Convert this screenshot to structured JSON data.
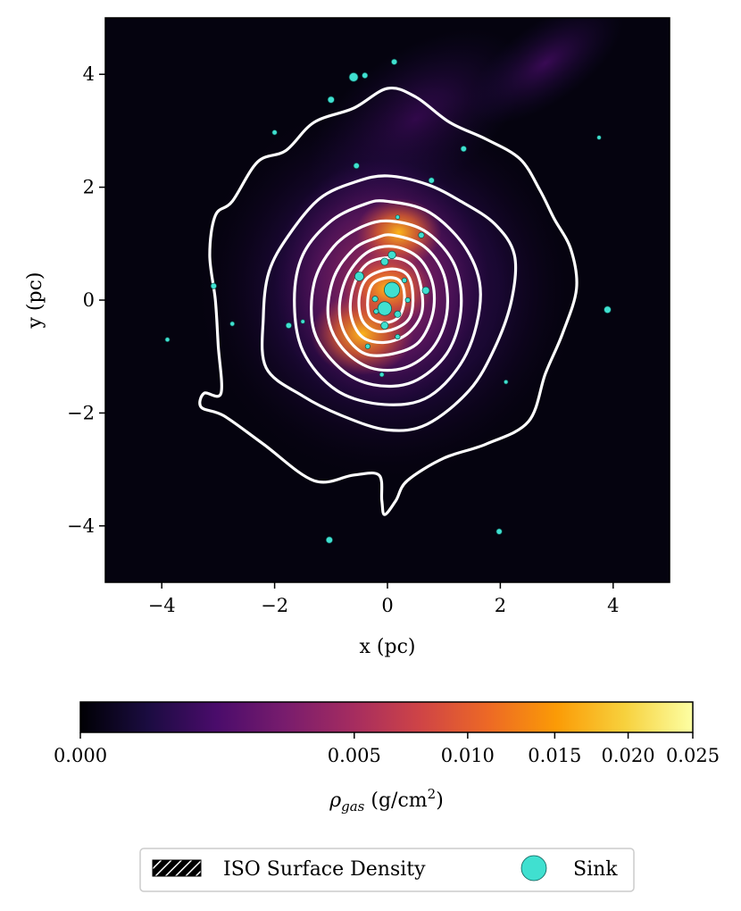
{
  "chart_data": {
    "type": "heatmap",
    "title": "",
    "xlabel": "x (pc)",
    "ylabel": "y (pc)",
    "xlim": [
      -5,
      5
    ],
    "ylim": [
      -5,
      5
    ],
    "x_ticks": [
      -4,
      -2,
      0,
      2,
      4
    ],
    "y_ticks": [
      -4,
      -2,
      0,
      2,
      4
    ],
    "x_tick_labels": [
      "−4",
      "−2",
      "0",
      "2",
      "4"
    ],
    "y_tick_labels": [
      "−4",
      "−2",
      "0",
      "2",
      "4"
    ],
    "grid": false,
    "colormap": "inferno",
    "colormap_colors": [
      "#000004",
      "#1b0c41",
      "#4a0c6b",
      "#781c6d",
      "#a52c60",
      "#cf4446",
      "#ed6925",
      "#fb9b06",
      "#f7d13d",
      "#fcffa4"
    ],
    "colorbar": {
      "orientation": "horizontal",
      "label_prefix": "ρ",
      "label_subscript": "gas",
      "label_units_prefix": " (g/cm",
      "label_units_sup": "2",
      "label_units_suffix": ")",
      "scale": "power-law (gamma ≈ 0.5)",
      "range": [
        0.0,
        0.025
      ],
      "ticks": [
        0.0,
        0.005,
        0.01,
        0.015,
        0.02,
        0.025
      ],
      "tick_labels": [
        "0.000",
        "0.005",
        "0.010",
        "0.015",
        "0.020",
        "0.025"
      ]
    },
    "density_peaks": [
      {
        "x": 0.2,
        "y": 1.2,
        "density": 0.014
      },
      {
        "x": 0.0,
        "y": 0.2,
        "density": 0.016
      },
      {
        "x": -0.45,
        "y": -0.6,
        "density": 0.021
      }
    ],
    "contours": [
      {
        "level": 1,
        "points": [
          [
            0.0,
            3.75
          ],
          [
            0.5,
            3.6
          ],
          [
            1.1,
            3.15
          ],
          [
            1.75,
            2.85
          ],
          [
            2.35,
            2.5
          ],
          [
            2.7,
            1.95
          ],
          [
            2.95,
            1.45
          ],
          [
            3.25,
            0.9
          ],
          [
            3.35,
            0.2
          ],
          [
            3.1,
            -0.6
          ],
          [
            2.8,
            -1.3
          ],
          [
            2.5,
            -2.15
          ],
          [
            1.75,
            -2.55
          ],
          [
            1.0,
            -2.8
          ],
          [
            0.35,
            -3.2
          ],
          [
            0.15,
            -3.55
          ],
          [
            -0.05,
            -3.8
          ],
          [
            -0.1,
            -3.55
          ],
          [
            -0.15,
            -3.1
          ],
          [
            -0.6,
            -3.1
          ],
          [
            -1.3,
            -3.2
          ],
          [
            -2.2,
            -2.55
          ],
          [
            -2.9,
            -2.05
          ],
          [
            -3.3,
            -1.9
          ],
          [
            -3.25,
            -1.65
          ],
          [
            -2.95,
            -1.65
          ],
          [
            -3.0,
            -0.8
          ],
          [
            -3.05,
            0.0
          ],
          [
            -3.15,
            0.8
          ],
          [
            -3.05,
            1.5
          ],
          [
            -2.75,
            1.75
          ],
          [
            -2.3,
            2.45
          ],
          [
            -1.8,
            2.65
          ],
          [
            -1.3,
            3.15
          ],
          [
            -0.6,
            3.4
          ]
        ]
      },
      {
        "level": 2,
        "points": [
          [
            0.0,
            2.2
          ],
          [
            0.7,
            2.05
          ],
          [
            1.3,
            1.75
          ],
          [
            1.9,
            1.35
          ],
          [
            2.25,
            0.8
          ],
          [
            2.2,
            0.0
          ],
          [
            1.9,
            -0.85
          ],
          [
            1.45,
            -1.6
          ],
          [
            0.7,
            -2.2
          ],
          [
            0.0,
            -2.3
          ],
          [
            -0.8,
            -2.05
          ],
          [
            -1.5,
            -1.7
          ],
          [
            -2.15,
            -1.2
          ],
          [
            -2.2,
            -0.3
          ],
          [
            -2.1,
            0.5
          ],
          [
            -1.75,
            1.15
          ],
          [
            -1.2,
            1.8
          ],
          [
            -0.55,
            2.1
          ]
        ]
      },
      {
        "level": 3,
        "points": [
          [
            0.0,
            1.75
          ],
          [
            0.75,
            1.55
          ],
          [
            1.4,
            0.9
          ],
          [
            1.65,
            0.1
          ],
          [
            1.4,
            -0.95
          ],
          [
            0.75,
            -1.7
          ],
          [
            -0.05,
            -1.85
          ],
          [
            -0.9,
            -1.6
          ],
          [
            -1.5,
            -0.9
          ],
          [
            -1.65,
            0.0
          ],
          [
            -1.5,
            0.8
          ],
          [
            -1.0,
            1.4
          ],
          [
            -0.4,
            1.7
          ]
        ]
      },
      {
        "level": 4,
        "points": [
          [
            0.05,
            1.4
          ],
          [
            0.7,
            1.2
          ],
          [
            1.2,
            0.6
          ],
          [
            1.3,
            -0.2
          ],
          [
            1.05,
            -0.95
          ],
          [
            0.45,
            -1.45
          ],
          [
            -0.25,
            -1.5
          ],
          [
            -0.85,
            -1.2
          ],
          [
            -1.3,
            -0.55
          ],
          [
            -1.3,
            0.3
          ],
          [
            -0.95,
            0.95
          ],
          [
            -0.45,
            1.3
          ]
        ]
      },
      {
        "level": 5,
        "points": [
          [
            0.1,
            1.15
          ],
          [
            0.65,
            0.95
          ],
          [
            1.0,
            0.45
          ],
          [
            1.05,
            -0.25
          ],
          [
            0.8,
            -0.85
          ],
          [
            0.3,
            -1.2
          ],
          [
            -0.3,
            -1.2
          ],
          [
            -0.8,
            -0.85
          ],
          [
            -1.05,
            -0.3
          ],
          [
            -0.95,
            0.4
          ],
          [
            -0.6,
            0.9
          ],
          [
            -0.2,
            1.1
          ]
        ]
      },
      {
        "level": 6,
        "points": [
          [
            0.1,
            0.95
          ],
          [
            0.55,
            0.75
          ],
          [
            0.8,
            0.3
          ],
          [
            0.8,
            -0.25
          ],
          [
            0.55,
            -0.75
          ],
          [
            0.1,
            -0.95
          ],
          [
            -0.4,
            -0.95
          ],
          [
            -0.75,
            -0.6
          ],
          [
            -0.85,
            -0.1
          ],
          [
            -0.7,
            0.45
          ],
          [
            -0.35,
            0.85
          ]
        ]
      },
      {
        "level": 7,
        "points": [
          [
            0.1,
            0.75
          ],
          [
            0.45,
            0.6
          ],
          [
            0.6,
            0.2
          ],
          [
            0.6,
            -0.25
          ],
          [
            0.35,
            -0.6
          ],
          [
            -0.05,
            -0.75
          ],
          [
            -0.45,
            -0.65
          ],
          [
            -0.65,
            -0.25
          ],
          [
            -0.6,
            0.25
          ],
          [
            -0.35,
            0.65
          ]
        ]
      },
      {
        "level": 8,
        "points": [
          [
            0.05,
            0.55
          ],
          [
            0.35,
            0.45
          ],
          [
            0.45,
            0.1
          ],
          [
            0.4,
            -0.3
          ],
          [
            0.15,
            -0.5
          ],
          [
            -0.2,
            -0.55
          ],
          [
            -0.45,
            -0.35
          ],
          [
            -0.5,
            0.05
          ],
          [
            -0.35,
            0.4
          ]
        ]
      },
      {
        "level": 9,
        "points": [
          [
            0.05,
            0.4
          ],
          [
            0.25,
            0.3
          ],
          [
            0.3,
            0.0
          ],
          [
            0.2,
            -0.3
          ],
          [
            -0.05,
            -0.4
          ],
          [
            -0.3,
            -0.3
          ],
          [
            -0.35,
            0.0
          ],
          [
            -0.25,
            0.3
          ]
        ]
      }
    ],
    "sinks": [
      {
        "x": 0.12,
        "y": 4.22,
        "size": 0.6
      },
      {
        "x": -0.6,
        "y": 3.95,
        "size": 1.0
      },
      {
        "x": -0.4,
        "y": 3.98,
        "size": 0.6
      },
      {
        "x": -1.0,
        "y": 3.55,
        "size": 0.7
      },
      {
        "x": -2.0,
        "y": 2.97,
        "size": 0.5
      },
      {
        "x": 1.35,
        "y": 2.68,
        "size": 0.6
      },
      {
        "x": 3.75,
        "y": 2.88,
        "size": 0.4
      },
      {
        "x": -0.55,
        "y": 2.38,
        "size": 0.6
      },
      {
        "x": 0.78,
        "y": 2.12,
        "size": 0.6
      },
      {
        "x": 0.18,
        "y": 1.47,
        "size": 0.4
      },
      {
        "x": 0.6,
        "y": 1.15,
        "size": 0.6
      },
      {
        "x": 0.08,
        "y": 0.8,
        "size": 0.85
      },
      {
        "x": -0.05,
        "y": 0.68,
        "size": 0.8
      },
      {
        "x": -0.5,
        "y": 0.42,
        "size": 1.0
      },
      {
        "x": 0.3,
        "y": 0.35,
        "size": 0.5
      },
      {
        "x": 0.68,
        "y": 0.17,
        "size": 0.8
      },
      {
        "x": 0.08,
        "y": 0.18,
        "size": 1.8
      },
      {
        "x": -0.22,
        "y": 0.02,
        "size": 0.6
      },
      {
        "x": 0.36,
        "y": 0.0,
        "size": 0.5
      },
      {
        "x": -0.05,
        "y": -0.15,
        "size": 1.6
      },
      {
        "x": -0.2,
        "y": -0.2,
        "size": 0.5
      },
      {
        "x": 0.18,
        "y": -0.25,
        "size": 0.7
      },
      {
        "x": -0.05,
        "y": -0.45,
        "size": 0.8
      },
      {
        "x": 0.18,
        "y": -0.65,
        "size": 0.5
      },
      {
        "x": -3.08,
        "y": 0.25,
        "size": 0.6
      },
      {
        "x": -2.75,
        "y": -0.42,
        "size": 0.45
      },
      {
        "x": -1.75,
        "y": -0.45,
        "size": 0.6
      },
      {
        "x": -1.5,
        "y": -0.38,
        "size": 0.4
      },
      {
        "x": -3.9,
        "y": -0.7,
        "size": 0.45
      },
      {
        "x": -0.35,
        "y": -0.82,
        "size": 0.5
      },
      {
        "x": -0.1,
        "y": -1.32,
        "size": 0.45
      },
      {
        "x": 2.1,
        "y": -1.45,
        "size": 0.4
      },
      {
        "x": 3.9,
        "y": -0.17,
        "size": 0.75
      },
      {
        "x": -1.03,
        "y": -4.25,
        "size": 0.7
      },
      {
        "x": 1.98,
        "y": -4.1,
        "size": 0.6
      }
    ],
    "sink_color": "#40e0d0",
    "contour_color": "#ffffff",
    "legend": {
      "placement": "bottom-center",
      "entries": [
        {
          "label": "ISO Surface Density",
          "marker": "hatched-patch"
        },
        {
          "label": "Sink",
          "marker": "circle"
        }
      ]
    }
  }
}
